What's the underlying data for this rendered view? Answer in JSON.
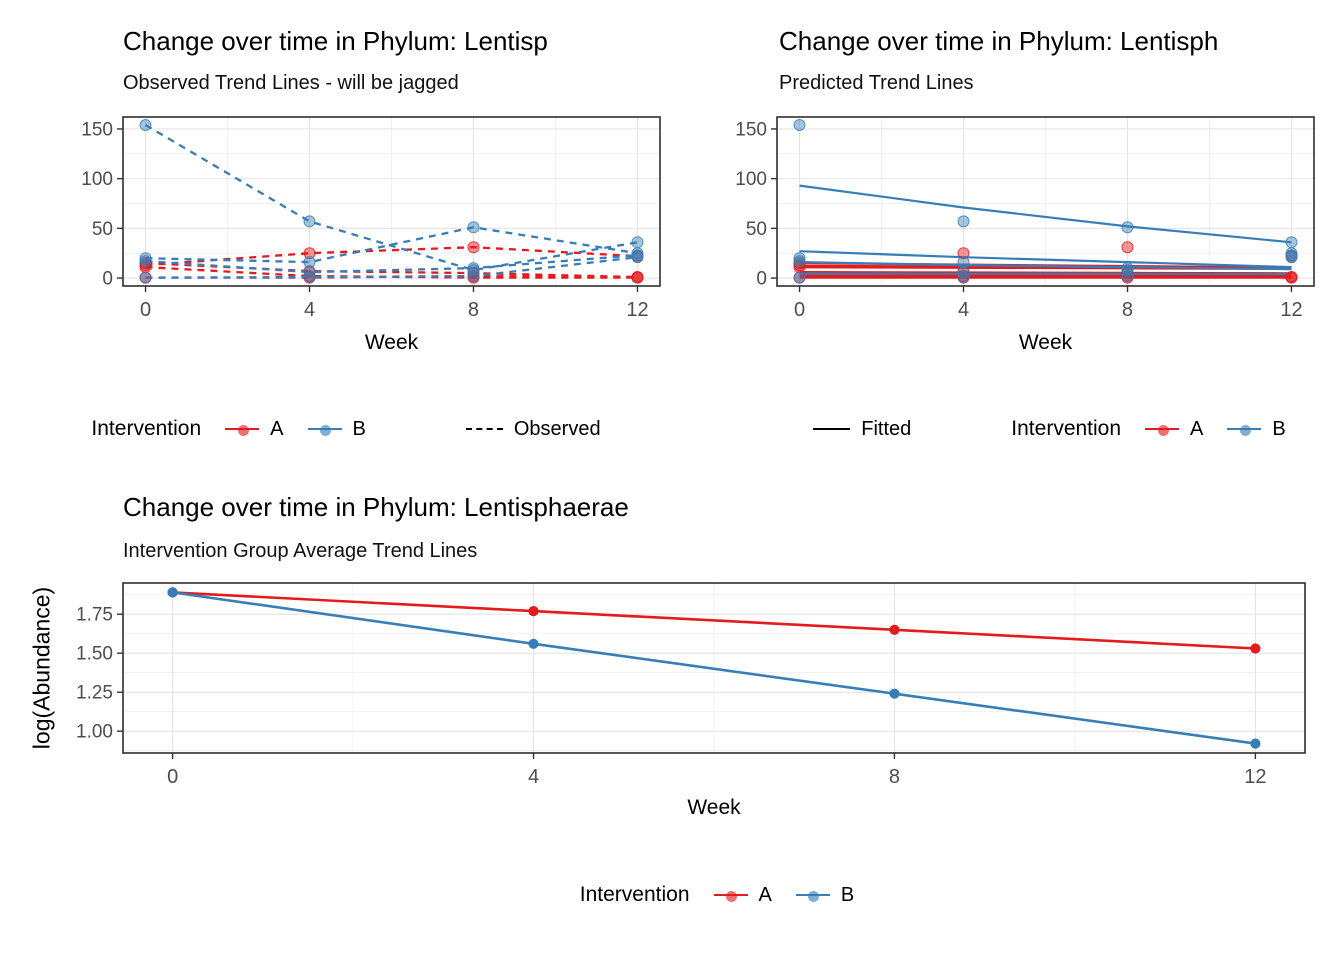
{
  "colors": {
    "red": "#E41A1C",
    "blue": "#377EB8",
    "grid_major": "#e4e4e4",
    "grid_minor": "#f1f1f1",
    "panel_border": "#2e2e2e",
    "tick_text": "#4d4d4d",
    "legend_key_black": "#000000"
  },
  "chart_data": [
    {
      "id": "observed",
      "type": "line",
      "title": "Change over time in Phylum: Lentisp",
      "subtitle": "Observed Trend Lines - will be jagged",
      "xlabel": "Week",
      "x": [
        0,
        4,
        8,
        12
      ],
      "x_tick_labels": [
        "0",
        "4",
        "8",
        "12"
      ],
      "x_minor": [
        2,
        6,
        10
      ],
      "xlim": [
        -0.55,
        12.55
      ],
      "y_ticks": [
        0,
        50,
        100,
        150
      ],
      "y_tick_labels": [
        "0",
        "50",
        "100",
        "150"
      ],
      "y_minor": [
        25,
        75,
        125
      ],
      "ylim": [
        -8,
        162
      ],
      "grid": "on",
      "linestyle": "dashed",
      "show_points": true,
      "point_radius": 5.5,
      "point_alpha": 0.45,
      "legend": {
        "title": "Intervention",
        "items": [
          {
            "label": "A",
            "color_key": "red"
          },
          {
            "label": "B",
            "color_key": "blue"
          }
        ],
        "linetype_item": {
          "label": "Observed",
          "key": "dashed"
        }
      },
      "series": [
        {
          "name": "A-subject-1",
          "group": "A",
          "values": [
            13,
            25,
            31,
            22
          ]
        },
        {
          "name": "A-subject-2",
          "group": "A",
          "values": [
            15,
            7,
            5,
            1
          ]
        },
        {
          "name": "A-subject-3",
          "group": "A",
          "values": [
            11,
            2,
            0.5,
            0.5
          ]
        },
        {
          "name": "A-subject-4",
          "group": "A",
          "values": [
            0.5,
            0.5,
            2,
            1
          ]
        },
        {
          "name": "B-subject-1",
          "group": "B",
          "values": [
            154,
            57,
            8,
            36
          ]
        },
        {
          "name": "B-subject-2",
          "group": "B",
          "values": [
            20,
            16,
            51,
            25
          ]
        },
        {
          "name": "B-subject-3",
          "group": "B",
          "values": [
            17,
            6,
            10,
            23
          ]
        },
        {
          "name": "B-subject-4",
          "group": "B",
          "values": [
            0.5,
            1,
            2,
            21
          ]
        }
      ]
    },
    {
      "id": "predicted",
      "type": "scatter+line",
      "title": "Change over time in Phylum: Lentisph",
      "subtitle": "Predicted Trend Lines",
      "xlabel": "Week",
      "x": [
        0,
        4,
        8,
        12
      ],
      "x_tick_labels": [
        "0",
        "4",
        "8",
        "12"
      ],
      "x_minor": [
        2,
        6,
        10
      ],
      "xlim": [
        -0.55,
        12.55
      ],
      "y_ticks": [
        0,
        50,
        100,
        150
      ],
      "y_tick_labels": [
        "0",
        "50",
        "100",
        "150"
      ],
      "y_minor": [
        25,
        75,
        125
      ],
      "ylim": [
        -8,
        162
      ],
      "grid": "on",
      "linestyle": "solid",
      "show_points": false,
      "point_radius": 5.5,
      "point_alpha": 0.45,
      "legend": {
        "title": "Intervention",
        "items": [
          {
            "label": "A",
            "color_key": "red"
          },
          {
            "label": "B",
            "color_key": "blue"
          }
        ],
        "linetype_item": {
          "label": "Fitted",
          "key": "solid"
        }
      },
      "series": [
        {
          "name": "A-fit-1",
          "group": "A",
          "values": [
            15,
            13.5,
            12,
            10.5
          ],
          "width": 2.2
        },
        {
          "name": "A-fit-2",
          "group": "A",
          "values": [
            11.5,
            11,
            10.5,
            10
          ],
          "width": 3.6
        },
        {
          "name": "A-fit-3",
          "group": "A",
          "values": [
            6,
            5.6,
            5.2,
            4.8
          ],
          "width": 2.2
        },
        {
          "name": "A-fit-4",
          "group": "A",
          "values": [
            2.5,
            2.5,
            2.5,
            2.5
          ],
          "width": 4.5
        },
        {
          "name": "A-fit-5",
          "group": "A",
          "values": [
            0.6,
            0.6,
            0.6,
            0.6
          ],
          "width": 2.6
        },
        {
          "name": "B-fit-1",
          "group": "B",
          "values": [
            93,
            71,
            52,
            36
          ],
          "width": 2.2
        },
        {
          "name": "B-fit-2",
          "group": "B",
          "values": [
            27,
            21,
            16,
            11
          ],
          "width": 2.2
        },
        {
          "name": "B-fit-3",
          "group": "B",
          "values": [
            16,
            13,
            11,
            9
          ],
          "width": 2.2
        },
        {
          "name": "B-fit-4",
          "group": "B",
          "values": [
            4.5,
            4.3,
            4.2,
            4
          ],
          "width": 2.2
        }
      ],
      "points": [
        {
          "name": "A-subject-1",
          "group": "A",
          "values": [
            13,
            25,
            31,
            22
          ]
        },
        {
          "name": "A-subject-2",
          "group": "A",
          "values": [
            15,
            7,
            5,
            1
          ]
        },
        {
          "name": "A-subject-3",
          "group": "A",
          "values": [
            11,
            2,
            0.5,
            0.5
          ]
        },
        {
          "name": "A-subject-4",
          "group": "A",
          "values": [
            0.5,
            0.5,
            2,
            1
          ]
        },
        {
          "name": "B-subject-1",
          "group": "B",
          "values": [
            154,
            57,
            8,
            36
          ]
        },
        {
          "name": "B-subject-2",
          "group": "B",
          "values": [
            20,
            16,
            51,
            25
          ]
        },
        {
          "name": "B-subject-3",
          "group": "B",
          "values": [
            17,
            6,
            10,
            23
          ]
        },
        {
          "name": "B-subject-4",
          "group": "B",
          "values": [
            0.5,
            1,
            2,
            21
          ]
        }
      ]
    },
    {
      "id": "group-average",
      "type": "line",
      "title": "Change over time in Phylum: Lentisphaerae",
      "subtitle": "Intervention Group Average Trend Lines",
      "xlabel": "Week",
      "ylabel": "log(Abundance)",
      "x": [
        0,
        4,
        8,
        12
      ],
      "x_tick_labels": [
        "0",
        "4",
        "8",
        "12"
      ],
      "x_minor": [
        2,
        6,
        10
      ],
      "xlim": [
        -0.55,
        12.55
      ],
      "y_ticks": [
        1.0,
        1.25,
        1.5,
        1.75
      ],
      "y_tick_labels": [
        "1.00",
        "1.25",
        "1.50",
        "1.75"
      ],
      "y_minor": [
        0.875,
        1.125,
        1.375,
        1.625,
        1.875
      ],
      "ylim": [
        0.86,
        1.95
      ],
      "grid": "on",
      "linestyle": "solid",
      "show_points": true,
      "point_radius": 4.6,
      "point_alpha": 1,
      "legend": {
        "title": "Intervention",
        "items": [
          {
            "label": "A",
            "color_key": "red"
          },
          {
            "label": "B",
            "color_key": "blue"
          }
        ]
      },
      "series": [
        {
          "name": "A-mean",
          "group": "A",
          "values": [
            1.89,
            1.77,
            1.65,
            1.53
          ],
          "width": 2.6
        },
        {
          "name": "B-mean",
          "group": "B",
          "values": [
            1.89,
            1.56,
            1.24,
            0.92
          ],
          "width": 2.6
        }
      ]
    }
  ]
}
